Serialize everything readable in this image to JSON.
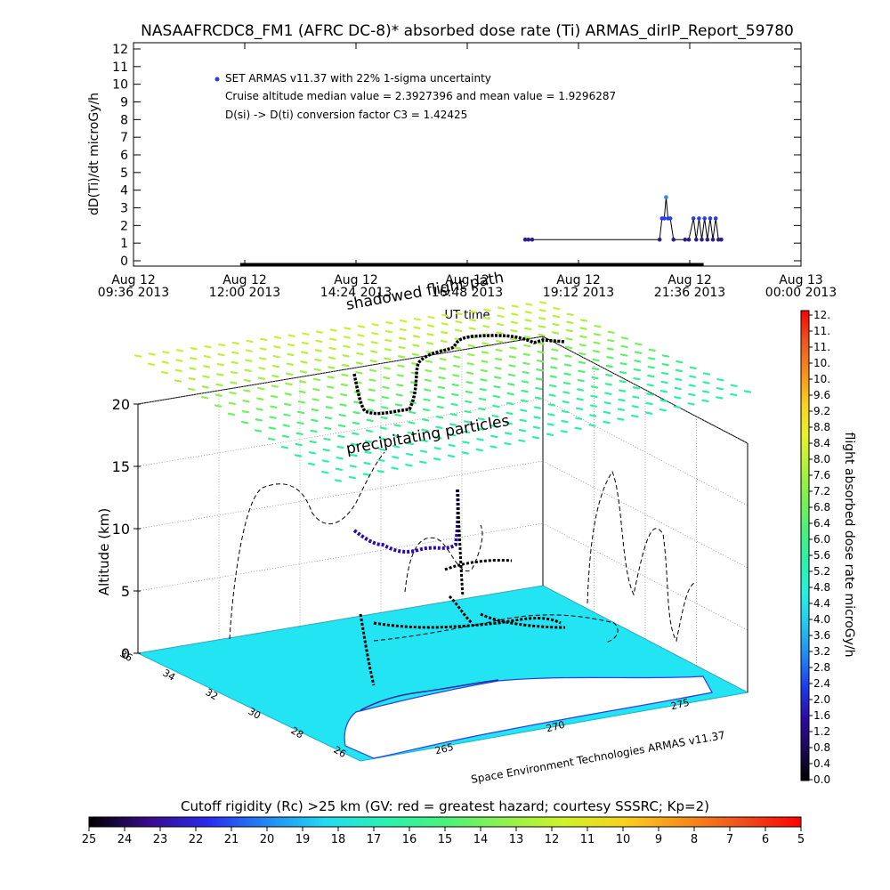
{
  "header": {
    "title": "NASAAFRCDC8_FM1 (AFRC DC-8)* absorbed dose rate (Ti) ARMAS_dirIP_Report_59780"
  },
  "chart_data": [
    {
      "type": "scatter",
      "ylabel": "dD(Ti)/dt microGy/h",
      "xlabel": "UT time",
      "ylim": [
        0,
        12
      ],
      "yticks": [
        "0",
        "1",
        "2",
        "3",
        "4",
        "5",
        "6",
        "7",
        "8",
        "9",
        "10",
        "11",
        "12"
      ],
      "xticks": [
        {
          "line1": "Aug 12",
          "line2": "09:36 2013"
        },
        {
          "line1": "Aug 12",
          "line2": "12:00 2013"
        },
        {
          "line1": "Aug 12",
          "line2": "14:24 2013"
        },
        {
          "line1": "Aug 12",
          "line2": "16:48 2013"
        },
        {
          "line1": "Aug 12",
          "line2": "19:12 2013"
        },
        {
          "line1": "Aug 12",
          "line2": "21:36 2013"
        },
        {
          "line1": "Aug 13",
          "line2": "00:00 2013"
        }
      ],
      "xlim_hours": [
        9.6,
        24.0
      ],
      "annotations": [
        "SET ARMAS v11.37 with 22% 1-sigma uncertainty",
        "Cruise altitude median value = 2.3927396 and mean value = 1.9296287",
        "D(si) -> D(ti) conversion factor C3 = 1.42425"
      ],
      "legend_position": "top-left",
      "series_color": "#2a1f8f",
      "baseline": {
        "x_start": 11.9,
        "x_end": 21.9,
        "y": 0
      },
      "points": [
        {
          "x": 18.05,
          "y": 1.2
        },
        {
          "x": 18.12,
          "y": 1.2
        },
        {
          "x": 18.2,
          "y": 1.2
        },
        {
          "x": 20.95,
          "y": 1.2
        },
        {
          "x": 21.0,
          "y": 2.4
        },
        {
          "x": 21.05,
          "y": 2.4
        },
        {
          "x": 21.09,
          "y": 3.6
        },
        {
          "x": 21.13,
          "y": 2.4
        },
        {
          "x": 21.18,
          "y": 2.4
        },
        {
          "x": 21.25,
          "y": 1.2
        },
        {
          "x": 21.5,
          "y": 1.2
        },
        {
          "x": 21.58,
          "y": 1.2
        },
        {
          "x": 21.68,
          "y": 2.4
        },
        {
          "x": 21.74,
          "y": 1.2
        },
        {
          "x": 21.8,
          "y": 2.4
        },
        {
          "x": 21.86,
          "y": 1.2
        },
        {
          "x": 21.92,
          "y": 2.4
        },
        {
          "x": 21.98,
          "y": 1.2
        },
        {
          "x": 22.04,
          "y": 2.4
        },
        {
          "x": 22.1,
          "y": 1.2
        },
        {
          "x": 22.16,
          "y": 2.4
        },
        {
          "x": 22.22,
          "y": 1.2
        },
        {
          "x": 22.28,
          "y": 1.2
        }
      ]
    },
    {
      "type": "other",
      "ylabel": "Altitude (km)",
      "zticks": [
        "0",
        "5",
        "10",
        "15",
        "20"
      ],
      "lat_ticks": [
        "36",
        "34",
        "32",
        "30",
        "28",
        "26"
      ],
      "lon_ticks": [
        "265",
        "270",
        "275"
      ],
      "label_precipitating": "precipitating particles",
      "label_shadowed": "shadowed flight path",
      "credit": "Space Environment Technologies ARMAS v11.37",
      "land_color": "#22e4f2",
      "ocean_color": "#ffffff"
    }
  ],
  "colorbar_dose": {
    "title": "flight absorbed dose rate microGy/h",
    "ticks": [
      "0.0",
      "0.4",
      "0.8",
      "1.2",
      "1.6",
      "2.0",
      "2.4",
      "2.8",
      "3.2",
      "3.6",
      "4.0",
      "4.4",
      "4.8",
      "5.2",
      "5.6",
      "6.0",
      "6.4",
      "6.8",
      "7.2",
      "7.6",
      "8.0",
      "8.4",
      "8.8",
      "9.2",
      "9.6",
      "10.",
      "10.",
      "11.",
      "11.",
      "12."
    ],
    "gradient": [
      "#000000",
      "#1c0a56",
      "#2d0aa8",
      "#1a3cf0",
      "#1f8af5",
      "#22c8f2",
      "#25f2e0",
      "#2af2a8",
      "#48f27a",
      "#7af24c",
      "#b0f23a",
      "#e6f22a",
      "#f8d21e",
      "#f89018",
      "#f0561e",
      "#ff0000"
    ]
  },
  "colorbar_rc": {
    "title": "Cutoff rigidity (Rc) >25 km (GV: red = greatest hazard; courtesy SSSRC; Kp=2)",
    "ticks": [
      "25",
      "24",
      "23",
      "22",
      "21",
      "20",
      "19",
      "18",
      "17",
      "16",
      "15",
      "14",
      "13",
      "12",
      "11",
      "10",
      "9",
      "8",
      "7",
      "6",
      "5"
    ],
    "gradient": [
      "#000000",
      "#3a0a8a",
      "#2a2af0",
      "#1f8af5",
      "#22dcf2",
      "#2af2b0",
      "#48f27a",
      "#90f24c",
      "#d0f22a",
      "#f8d21e",
      "#f8901a",
      "#f0501e",
      "#ff0000"
    ]
  }
}
